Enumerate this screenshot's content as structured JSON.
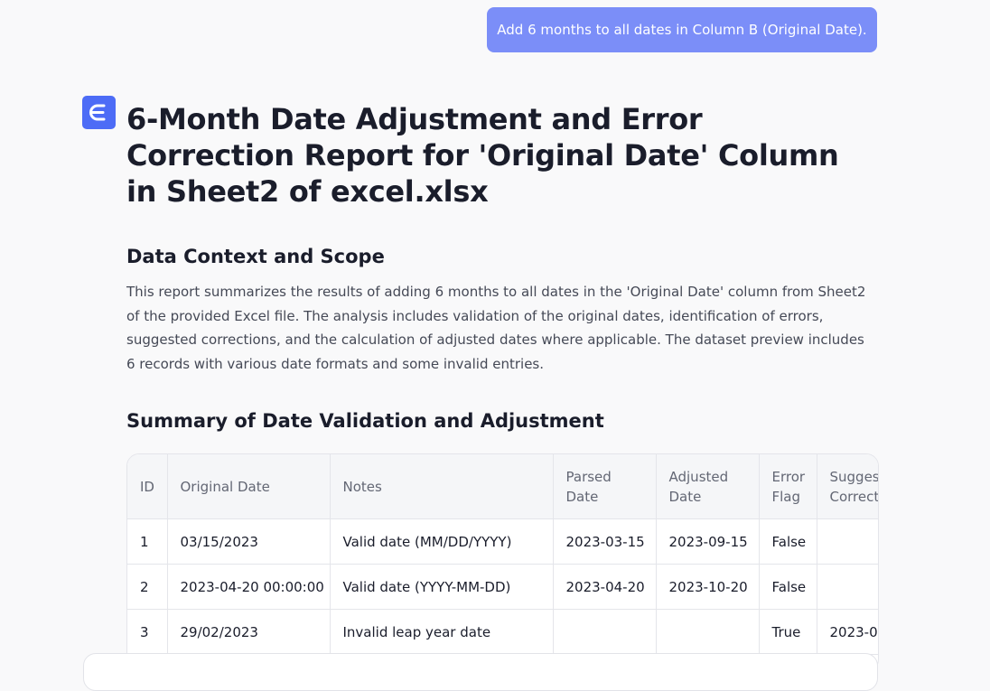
{
  "user_message": "Add 6 months to all dates in Column B (Original Date).",
  "report": {
    "title": "6-Month Date Adjustment and Error Correction Report for 'Original Date' Column in Sheet2 of excel.xlsx",
    "sections": [
      {
        "heading": "Data Context and Scope",
        "text": "This report summarizes the results of adding 6 months to all dates in the 'Original Date' column from Sheet2 of the provided Excel file. The analysis includes validation of the original dates, identification of errors, suggested corrections, and the calculation of adjusted dates where applicable. The dataset preview includes 6 records with various date formats and some invalid entries."
      },
      {
        "heading": "Summary of Date Validation and Adjustment"
      }
    ],
    "table": {
      "columns": [
        "ID",
        "Original Date",
        "Notes",
        "Parsed Date",
        "Adjusted Date",
        "Error Flag",
        "Suggested Correction"
      ],
      "rows": [
        [
          "1",
          "03/15/2023",
          "Valid date (MM/DD/YYYY)",
          "2023-03-15",
          "2023-09-15",
          "False",
          ""
        ],
        [
          "2",
          "2023-04-20 00:00:00",
          "Valid date (YYYY-MM-DD)",
          "2023-04-20",
          "2023-10-20",
          "False",
          ""
        ],
        [
          "3",
          "29/02/2023",
          "Invalid leap year date",
          "",
          "",
          "True",
          "2023-0"
        ]
      ]
    }
  }
}
